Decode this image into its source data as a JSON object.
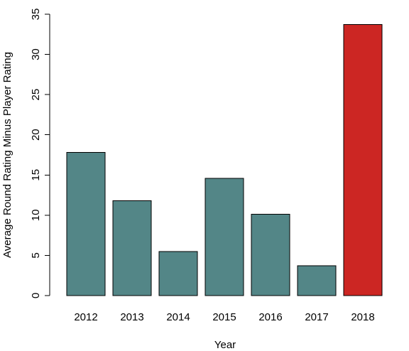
{
  "chart_data": {
    "type": "bar",
    "title": "",
    "xlabel": "Year",
    "ylabel": "Average Round Rating Minus Player Rating",
    "categories": [
      "2012",
      "2013",
      "2014",
      "2015",
      "2016",
      "2017",
      "2018"
    ],
    "values": [
      17.8,
      11.8,
      5.5,
      14.6,
      10.1,
      3.7,
      33.7
    ],
    "ylim": [
      0,
      35
    ],
    "yticks": [
      0,
      5,
      10,
      15,
      20,
      25,
      30,
      35
    ],
    "ytick_labels": [
      "0",
      "5",
      "10",
      "15",
      "20",
      "25",
      "30",
      "35"
    ],
    "colors": [
      "#538687",
      "#538687",
      "#538687",
      "#538687",
      "#538687",
      "#538687",
      "#cc2623"
    ],
    "grid": false,
    "legend": "none"
  }
}
